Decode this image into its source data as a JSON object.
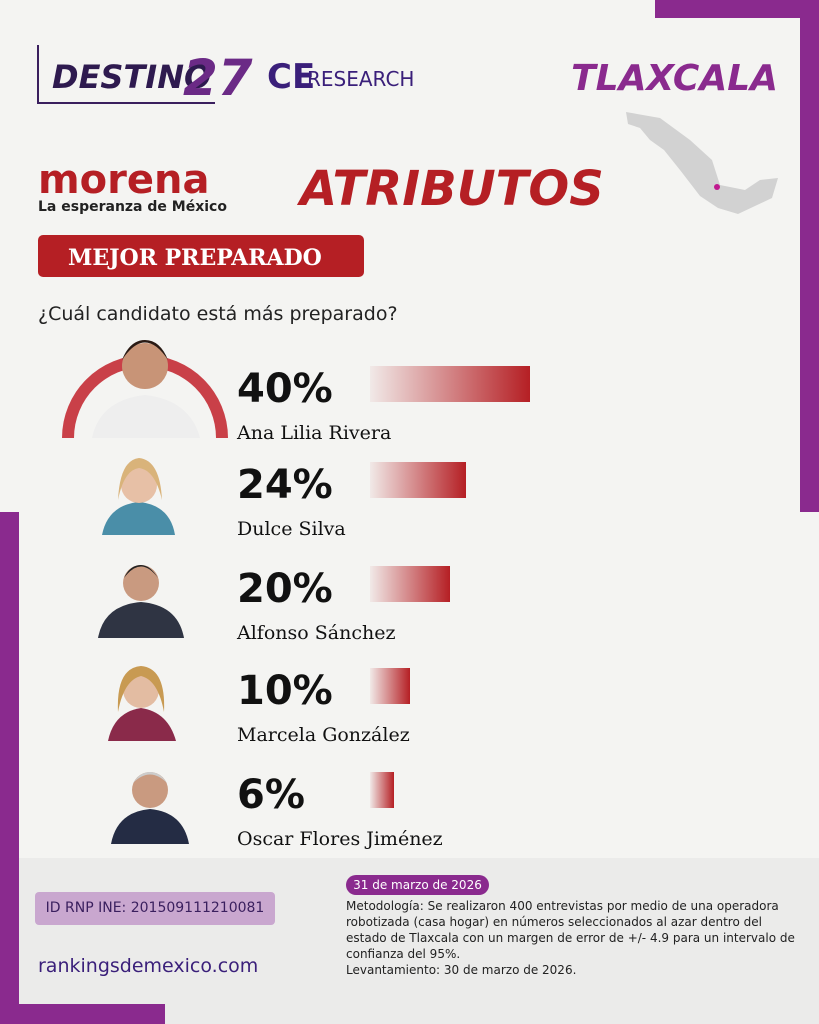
{
  "brand": {
    "destino": "DESTINO",
    "number": "27",
    "ce": "CE",
    "research": "RESEARCH"
  },
  "state": "TLAXCALA",
  "party": {
    "name": "morena",
    "slogan": "La esperanza de México"
  },
  "section": "ATRIBUTOS",
  "chart_data": {
    "type": "bar",
    "title": "MEJOR PREPARADO",
    "subtitle": "¿Cuál candidato está más preparado?",
    "categories": [
      "Ana Lilia Rivera",
      "Dulce Silva",
      "Alfonso Sánchez",
      "Marcela González",
      "Oscar Flores Jiménez"
    ],
    "values": [
      40,
      24,
      20,
      10,
      6
    ],
    "value_labels": [
      "40%",
      "24%",
      "20%",
      "10%",
      "6%"
    ],
    "color": "#b51f24"
  },
  "footer": {
    "date": "31 de marzo de 2026",
    "id": "ID RNP INE: 201509111210081",
    "site": "rankingsdemexico.com",
    "methodology": [
      "Metodología: Se realizaron 400 entrevistas por medio de una operadora",
      "robotizada (casa hogar) en números seleccionados al azar dentro del",
      "estado de Tlaxcala con un margen de error de +/- 4.9 para un intervalo de",
      "confianza del 95%.",
      "Levantamiento: 30 de marzo de 2026."
    ]
  }
}
